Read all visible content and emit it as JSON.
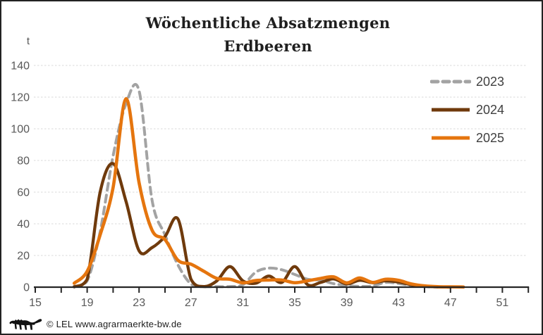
{
  "frame": {
    "border_color": "#232323",
    "background": "#ffffff"
  },
  "title": {
    "line1": "Wöchentliche Absatzmengen",
    "line2": "Erdbeeren"
  },
  "y_axis": {
    "unit": "t",
    "tick_labels": [
      0,
      20,
      40,
      60,
      80,
      100,
      120,
      140
    ],
    "min": 0,
    "max": 140,
    "gridline_color": "#d9d9d9"
  },
  "x_axis": {
    "label_ticks": [
      15,
      19,
      23,
      27,
      31,
      35,
      39,
      43,
      47,
      51
    ],
    "minor_tick_step": 2,
    "axis_start_week": 15,
    "axis_end_week": 53,
    "axis_color": "#262626",
    "label_color": "#595959"
  },
  "footer": {
    "copyright": "© LEL www.agrarmaerkte-bw.de",
    "logo": "bw-lion-logo",
    "logo_color": "#111111"
  },
  "chart_data": {
    "type": "line",
    "title": "Wöchentliche Absatzmengen Erdbeeren",
    "xlabel": "",
    "ylabel": "t",
    "ylim": [
      0,
      140
    ],
    "xlim": [
      15,
      53
    ],
    "grid": "horizontal-dashed",
    "legend_position": "right",
    "series": [
      {
        "name": "2023",
        "color": "#a3a3a3",
        "style": "dashed",
        "weeks": [
          18,
          19,
          20,
          21,
          22,
          23,
          24,
          25,
          26,
          27,
          28,
          29,
          30,
          31,
          32,
          33,
          34,
          35,
          36,
          37,
          38,
          39,
          40,
          41,
          42,
          43,
          44,
          45,
          46
        ],
        "values": [
          0.5,
          4,
          35,
          83,
          116,
          124,
          55,
          33,
          14,
          2,
          0.4,
          0.3,
          0.4,
          1.5,
          9.5,
          12,
          11,
          8,
          5,
          4.4,
          2.2,
          1,
          0.5,
          0.7,
          3,
          2.3,
          1,
          0.3,
          0
        ]
      },
      {
        "name": "2024",
        "color": "#6f3a0c",
        "style": "solid",
        "weeks": [
          18,
          19,
          20,
          21,
          22,
          23,
          24,
          25,
          26,
          27,
          28,
          29,
          30,
          31,
          32,
          33,
          34,
          35,
          36,
          37,
          38,
          39,
          40,
          41,
          42,
          43,
          44,
          45,
          46,
          47
        ],
        "values": [
          0.2,
          5,
          60,
          78,
          54,
          23,
          25,
          32,
          43,
          5,
          0.4,
          4,
          13,
          4,
          2.5,
          7,
          3,
          13,
          1.5,
          3,
          5.2,
          2,
          4.3,
          2.8,
          4,
          3.2,
          1.5,
          0.6,
          0.2,
          0
        ]
      },
      {
        "name": "2025",
        "color": "#e5750e",
        "style": "solid",
        "weeks": [
          18,
          19,
          20,
          21,
          22,
          23,
          24,
          25,
          26,
          27,
          28,
          29,
          30,
          31,
          32,
          33,
          34,
          35,
          36,
          37,
          38,
          39,
          40,
          41,
          42,
          43,
          44,
          45,
          46,
          47,
          48
        ],
        "values": [
          2.5,
          10,
          33,
          63,
          119,
          66,
          36,
          30,
          17,
          14.5,
          10,
          5.5,
          5,
          2.7,
          4.2,
          4.5,
          4.5,
          2.8,
          4,
          5.5,
          6.5,
          2.7,
          5.8,
          3,
          5,
          4.3,
          2,
          0.8,
          0.3,
          0.2,
          0.1
        ]
      }
    ]
  }
}
